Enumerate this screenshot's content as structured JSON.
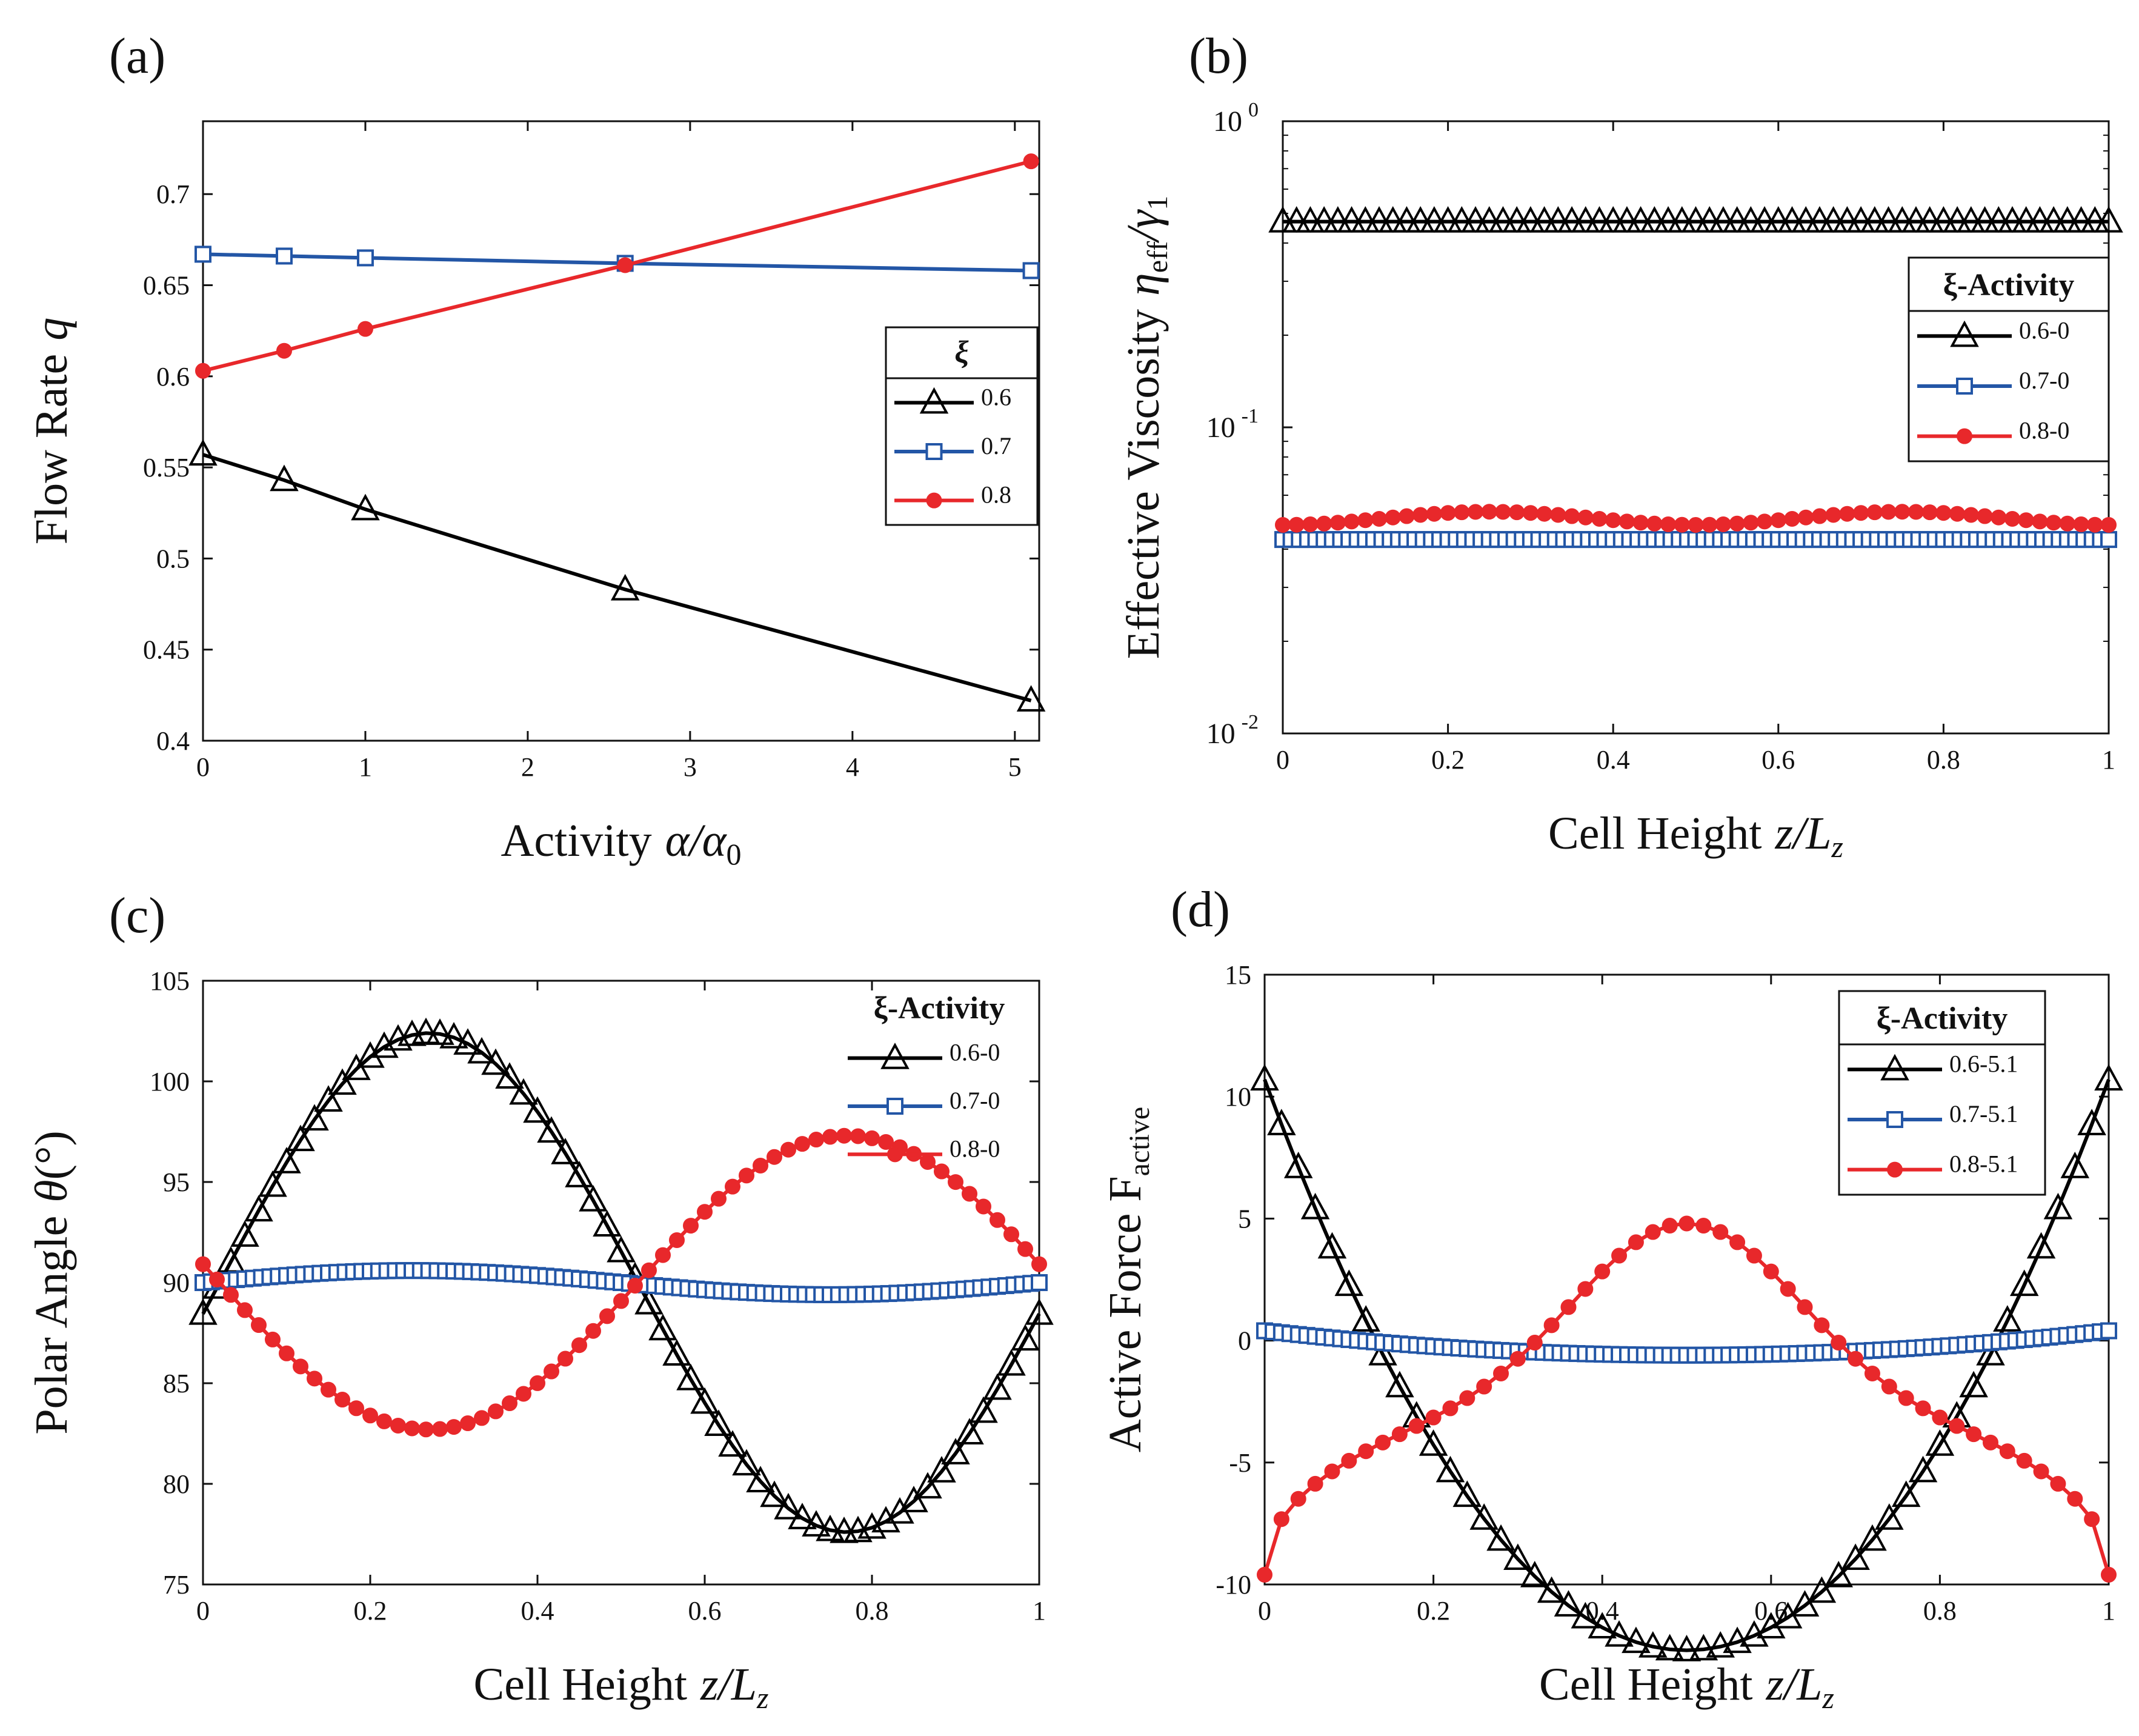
{
  "chart_data": [
    {
      "id": "a",
      "type": "line",
      "panel_label": "(a)",
      "xlabel": "Activity",
      "xlabel_math": "α/α",
      "xlabel_sub": "0",
      "ylabel": "Flow Rate",
      "ylabel_math": "q",
      "xlim": [
        0,
        5.15
      ],
      "ylim": [
        0.4,
        0.74
      ],
      "yscale": "linear",
      "xticks": [
        0,
        1,
        2,
        3,
        4,
        5
      ],
      "xtick_labels": [
        "0",
        "1",
        "2",
        "3",
        "4",
        "5"
      ],
      "yticks": [
        0.4,
        0.45,
        0.5,
        0.55,
        0.6,
        0.65,
        0.7
      ],
      "ytick_labels": [
        "0.4",
        "0.45",
        "0.5",
        "0.55",
        "0.6",
        "0.65",
        "0.7"
      ],
      "legend_title": "ξ",
      "legend_position": "middle-right",
      "series": [
        {
          "name": "0.6",
          "color": "#000000",
          "marker": "triangle",
          "x": [
            0,
            0.5,
            1,
            2.6,
            5.1
          ],
          "y": [
            0.557,
            0.543,
            0.527,
            0.483,
            0.422
          ]
        },
        {
          "name": "0.7",
          "color": "#2356a6",
          "marker": "square",
          "x": [
            0,
            0.5,
            1,
            2.6,
            5.1
          ],
          "y": [
            0.667,
            0.666,
            0.665,
            0.662,
            0.658
          ]
        },
        {
          "name": "0.8",
          "color": "#e8282b",
          "marker": "circle",
          "x": [
            0,
            0.5,
            1,
            2.6,
            5.1
          ],
          "y": [
            0.603,
            0.614,
            0.626,
            0.661,
            0.718
          ]
        }
      ]
    },
    {
      "id": "b",
      "type": "line",
      "panel_label": "(b)",
      "xlabel": "Cell Height",
      "xlabel_math": "z/L",
      "xlabel_sub": "z",
      "ylabel": "Effective Viscosity",
      "ylabel_math": "η",
      "ylabel_sub": "eff",
      "ylabel_math2": "/γ",
      "ylabel_sub2": "1",
      "xlim": [
        0,
        1
      ],
      "ylim": [
        0.01,
        1
      ],
      "yscale": "log",
      "xticks": [
        0,
        0.2,
        0.4,
        0.6,
        0.8,
        1
      ],
      "xtick_labels": [
        "0",
        "0.2",
        "0.4",
        "0.6",
        "0.8",
        "1"
      ],
      "yticks": [
        0.01,
        0.1,
        1
      ],
      "ytick_bases": [
        "10",
        "10",
        "10"
      ],
      "ytick_exps": [
        "-2",
        "-1",
        "0"
      ],
      "legend_title": "ξ-Activity",
      "legend_position": "upper-right",
      "series": [
        {
          "name": "0.6-0",
          "color": "#000000",
          "marker": "triangle",
          "n": 61,
          "fn": "const",
          "a": 0.47
        },
        {
          "name": "0.7-0",
          "color": "#2356a6",
          "marker": "square",
          "n": 101,
          "fn": "const",
          "a": 0.043
        },
        {
          "name": "0.8-0",
          "color": "#e8282b",
          "marker": "circle",
          "n": 61,
          "fn": "viscwave",
          "a": 0.0505,
          "b": 0.0025
        }
      ]
    },
    {
      "id": "c",
      "type": "line",
      "panel_label": "(c)",
      "xlabel": "Cell Height",
      "xlabel_math": "z/L",
      "xlabel_sub": "z",
      "ylabel": "Polar Angle",
      "ylabel_math": "θ",
      "ylabel_suffix": "(°)",
      "xlim": [
        0,
        1
      ],
      "ylim": [
        75,
        105
      ],
      "yscale": "linear",
      "xticks": [
        0,
        0.2,
        0.4,
        0.6,
        0.8,
        1
      ],
      "xtick_labels": [
        "0",
        "0.2",
        "0.4",
        "0.6",
        "0.8",
        "1"
      ],
      "yticks": [
        75,
        80,
        85,
        90,
        95,
        100,
        105
      ],
      "ytick_labels": [
        "75",
        "80",
        "85",
        "90",
        "95",
        "100",
        "105"
      ],
      "legend_title": "ξ-Activity",
      "legend_position": "upper-right",
      "series": [
        {
          "name": "0.6-0",
          "color": "#000000",
          "marker": "triangle",
          "n": 61,
          "fn": "polar_black"
        },
        {
          "name": "0.7-0",
          "color": "#2356a6",
          "marker": "square",
          "n": 101,
          "fn": "polar_blue"
        },
        {
          "name": "0.8-0",
          "color": "#e8282b",
          "marker": "circle",
          "n": 61,
          "fn": "polar_red"
        }
      ]
    },
    {
      "id": "d",
      "type": "line",
      "panel_label": "(d)",
      "xlabel": "Cell Height",
      "xlabel_math": "z/L",
      "xlabel_sub": "z",
      "ylabel": "Active Force F",
      "ylabel_sub": "active",
      "xlim": [
        0,
        1
      ],
      "ylim": [
        -10,
        15
      ],
      "yscale": "linear",
      "xticks": [
        0,
        0.2,
        0.4,
        0.6,
        0.8,
        1
      ],
      "xtick_labels": [
        "0",
        "0.2",
        "0.4",
        "0.6",
        "0.8",
        "1"
      ],
      "yticks": [
        -10,
        -5,
        0,
        5,
        10,
        15
      ],
      "ytick_labels": [
        "-10",
        "-5",
        "0",
        "5",
        "10",
        "15"
      ],
      "legend_title": "ξ-Activity",
      "legend_position": "upper-right",
      "series": [
        {
          "name": "0.6-5.1",
          "color": "#000000",
          "marker": "triangle",
          "n": 51,
          "fn": "force_black"
        },
        {
          "name": "0.7-5.1",
          "color": "#2356a6",
          "marker": "square",
          "n": 101,
          "fn": "force_blue"
        },
        {
          "name": "0.8-5.1",
          "color": "#e8282b",
          "marker": "circle",
          "n": 51,
          "fn": "force_red"
        }
      ]
    }
  ]
}
